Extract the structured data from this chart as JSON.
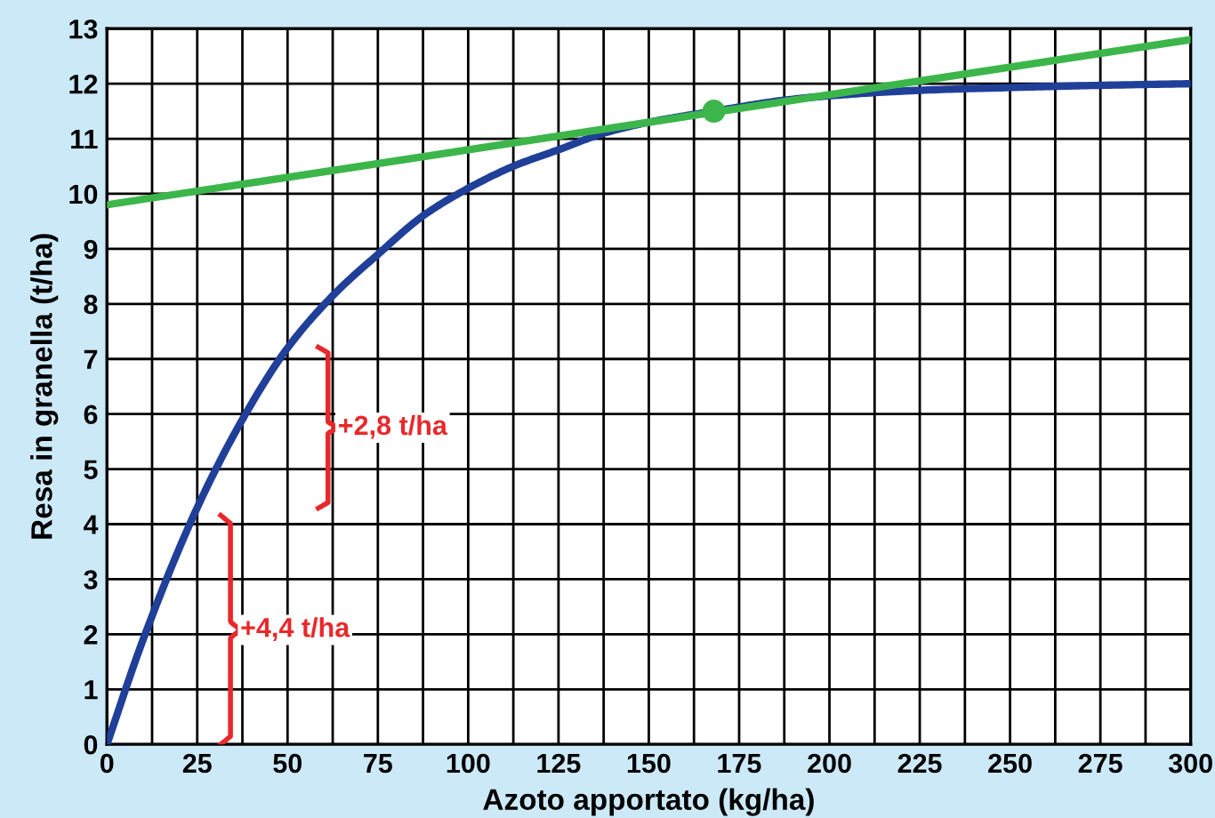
{
  "chart_data": {
    "type": "line",
    "xlabel": "Azoto apportato (kg/ha)",
    "ylabel": "Resa in granella (t/ha)",
    "xlim": [
      0,
      300
    ],
    "ylim": [
      0,
      13
    ],
    "xticks": [
      0,
      {
        "value": 12.5,
        "label": null
      },
      25,
      {
        "value": 37.5,
        "label": null
      },
      50,
      {
        "value": 62.5,
        "label": null
      },
      75,
      {
        "value": 87.5,
        "label": null
      },
      100,
      {
        "value": 112.5,
        "label": null
      },
      125,
      {
        "value": 137.5,
        "label": null
      },
      150,
      {
        "value": 162.5,
        "label": null
      },
      175,
      {
        "value": 187.5,
        "label": null
      },
      200,
      {
        "value": 212.5,
        "label": null
      },
      225,
      {
        "value": 237.5,
        "label": null
      },
      250,
      {
        "value": 262.5,
        "label": null
      },
      275,
      {
        "value": 287.5,
        "label": null
      },
      300
    ],
    "yticks": [
      0,
      1,
      2,
      3,
      4,
      5,
      6,
      7,
      8,
      9,
      10,
      11,
      12,
      13
    ],
    "grid": true,
    "legend": false,
    "series": [
      {
        "color": "#1f3f99",
        "x": [
          0,
          10,
          25,
          37.5,
          50,
          62.5,
          75,
          87.5,
          100,
          112.5,
          125,
          137.5,
          150,
          168,
          187.5,
          200,
          225,
          250,
          275,
          300
        ],
        "values": [
          0,
          1.9,
          4.3,
          5.9,
          7.2,
          8.15,
          8.9,
          9.6,
          10.1,
          10.5,
          10.8,
          11.1,
          11.3,
          11.5,
          11.7,
          11.78,
          11.88,
          11.93,
          11.97,
          12.0
        ]
      },
      {
        "type": "line",
        "color": "#3cb64a",
        "x": [
          0,
          300
        ],
        "values": [
          9.8,
          12.8
        ]
      },
      {
        "type": "scatter",
        "color": "#3cb64a",
        "x": [
          168
        ],
        "values": [
          11.5
        ]
      }
    ],
    "annotations": [
      "+4,4 t/ha",
      "+2,8 t/ha"
    ]
  }
}
